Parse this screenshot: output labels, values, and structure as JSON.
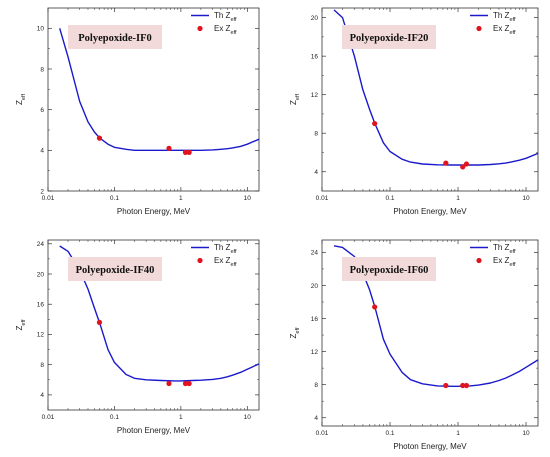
{
  "chart_data": [
    {
      "type": "line",
      "sample_label": "Polyepoxide-IF0",
      "xlabel": "Photon Energy, MeV",
      "ylabel": "Z_eff",
      "xscale": "log",
      "xlim": [
        0.01,
        15
      ],
      "ylim": [
        2,
        11
      ],
      "yticks": [
        2,
        4,
        6,
        8,
        10
      ],
      "xtick_labels": [
        "0.01",
        "0.1",
        "1",
        "10"
      ],
      "legend_placement": "top-right",
      "series": [
        {
          "name": "Th Z_eff",
          "kind": "line",
          "color": "#1a1acc",
          "x": [
            0.015,
            0.02,
            0.03,
            0.04,
            0.05,
            0.06,
            0.08,
            0.1,
            0.15,
            0.2,
            0.3,
            0.5,
            0.8,
            1,
            1.5,
            2,
            3,
            4,
            5,
            6,
            8,
            10,
            15
          ],
          "y": [
            10.0,
            8.6,
            6.4,
            5.4,
            4.9,
            4.6,
            4.3,
            4.15,
            4.05,
            4.0,
            4.0,
            4.0,
            4.0,
            4.0,
            4.0,
            4.0,
            4.02,
            4.05,
            4.08,
            4.12,
            4.2,
            4.3,
            4.55
          ]
        },
        {
          "name": "Ex Z_eff",
          "kind": "scatter",
          "color": "#e0141e",
          "x": [
            0.0595,
            0.662,
            1.173,
            1.332
          ],
          "y": [
            4.6,
            4.1,
            3.9,
            3.9
          ]
        }
      ]
    },
    {
      "type": "line",
      "sample_label": "Polyepoxide-IF20",
      "xlabel": "Photon Energy, MeV",
      "ylabel": "Z_eff",
      "xscale": "log",
      "xlim": [
        0.01,
        15
      ],
      "ylim": [
        2,
        21
      ],
      "yticks": [
        4,
        8,
        12,
        16,
        20
      ],
      "xtick_labels": [
        "0.01",
        "0.1",
        "1",
        "10"
      ],
      "legend_placement": "top-right",
      "series": [
        {
          "name": "Th Z_eff",
          "kind": "line",
          "color": "#1a1acc",
          "x": [
            0.015,
            0.02,
            0.03,
            0.04,
            0.05,
            0.06,
            0.08,
            0.1,
            0.15,
            0.2,
            0.3,
            0.5,
            0.8,
            1,
            1.5,
            2,
            3,
            4,
            5,
            6,
            8,
            10,
            15
          ],
          "y": [
            20.8,
            20.0,
            16.0,
            12.5,
            10.5,
            9.0,
            7.0,
            6.1,
            5.3,
            5.0,
            4.8,
            4.72,
            4.7,
            4.7,
            4.7,
            4.7,
            4.75,
            4.82,
            4.9,
            5.0,
            5.2,
            5.4,
            5.9
          ]
        },
        {
          "name": "Ex Z_eff",
          "kind": "scatter",
          "color": "#e0141e",
          "x": [
            0.0595,
            0.662,
            1.173,
            1.332
          ],
          "y": [
            9.0,
            4.9,
            4.5,
            4.8
          ]
        }
      ]
    },
    {
      "type": "line",
      "sample_label": "Polyepoxide-IF40",
      "xlabel": "Photon Energy, MeV",
      "ylabel": "Z_eff",
      "xscale": "log",
      "xlim": [
        0.01,
        15
      ],
      "ylim": [
        2,
        24.5
      ],
      "yticks": [
        4,
        8,
        12,
        16,
        20,
        24
      ],
      "xtick_labels": [
        "0.01",
        "0.1",
        "1",
        "10"
      ],
      "legend_placement": "top-right",
      "series": [
        {
          "name": "Th Z_eff",
          "kind": "line",
          "color": "#1a1acc",
          "x": [
            0.015,
            0.02,
            0.03,
            0.04,
            0.05,
            0.06,
            0.08,
            0.1,
            0.15,
            0.2,
            0.3,
            0.5,
            0.8,
            1,
            1.5,
            2,
            3,
            4,
            5,
            6,
            8,
            10,
            15
          ],
          "y": [
            23.7,
            23.0,
            20.5,
            18.0,
            15.5,
            13.5,
            10.0,
            8.3,
            6.7,
            6.2,
            6.0,
            5.9,
            5.85,
            5.85,
            5.9,
            5.95,
            6.05,
            6.2,
            6.4,
            6.6,
            7.0,
            7.4,
            8.1
          ]
        },
        {
          "name": "Ex Z_eff",
          "kind": "scatter",
          "color": "#e0141e",
          "x": [
            0.0595,
            0.662,
            1.173,
            1.332
          ],
          "y": [
            13.6,
            5.5,
            5.5,
            5.5
          ]
        }
      ]
    },
    {
      "type": "line",
      "sample_label": "Polyepoxide-IF60",
      "xlabel": "Photon Energy, MeV",
      "ylabel": "Z_eff",
      "xscale": "log",
      "xlim": [
        0.01,
        15
      ],
      "ylim": [
        3,
        25.5
      ],
      "yticks": [
        4,
        8,
        12,
        16,
        20,
        24
      ],
      "xtick_labels": [
        "0.01",
        "0.1",
        "1",
        "10"
      ],
      "legend_placement": "top-right",
      "series": [
        {
          "name": "Th Z_eff",
          "kind": "line",
          "color": "#1a1acc",
          "x": [
            0.015,
            0.02,
            0.03,
            0.04,
            0.05,
            0.06,
            0.08,
            0.1,
            0.15,
            0.2,
            0.3,
            0.5,
            0.8,
            1,
            1.5,
            2,
            3,
            4,
            5,
            6,
            8,
            10,
            15
          ],
          "y": [
            24.8,
            24.6,
            23.5,
            21.5,
            19.5,
            17.4,
            13.5,
            11.7,
            9.5,
            8.6,
            8.1,
            7.85,
            7.8,
            7.8,
            7.85,
            7.95,
            8.2,
            8.5,
            8.8,
            9.1,
            9.6,
            10.1,
            11.0
          ]
        },
        {
          "name": "Ex Z_eff",
          "kind": "scatter",
          "color": "#e0141e",
          "x": [
            0.0595,
            0.662,
            1.173,
            1.332
          ],
          "y": [
            17.4,
            7.9,
            7.9,
            7.9
          ]
        }
      ]
    }
  ]
}
